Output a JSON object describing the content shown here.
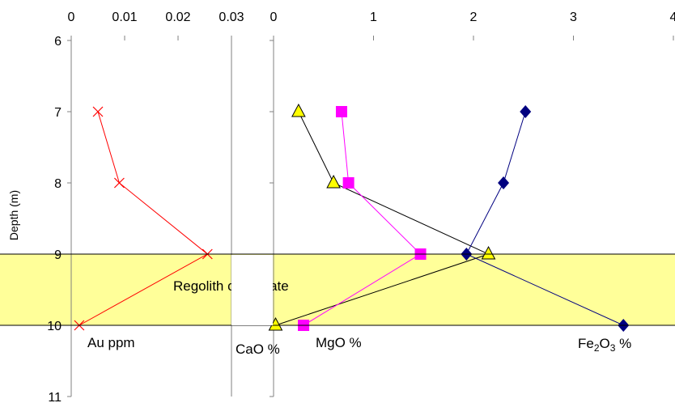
{
  "chart_data": [
    {
      "type": "line",
      "panel": "left",
      "x_axis_position": "top",
      "xlim": [
        0,
        0.03
      ],
      "x_ticks": [
        "0",
        "0.01",
        "0.02",
        "0.03"
      ],
      "ylim": [
        6,
        11
      ],
      "y_inverted": true,
      "y_ticks": [
        "6",
        "7",
        "8",
        "9",
        "10",
        "11"
      ],
      "ylabel": "Depth (m)",
      "series": [
        {
          "name": "Au ppm",
          "color": "#ff0000",
          "marker": "x",
          "points": [
            {
              "x": 0.005,
              "y": 7
            },
            {
              "x": 0.009,
              "y": 8
            },
            {
              "x": 0.0255,
              "y": 9
            },
            {
              "x": 0.0015,
              "y": 10
            }
          ]
        }
      ]
    },
    {
      "type": "line",
      "panel": "right",
      "x_axis_position": "top",
      "xlim": [
        0,
        4
      ],
      "x_ticks": [
        "0",
        "1",
        "2",
        "3",
        "4"
      ],
      "ylim": [
        6,
        11
      ],
      "y_inverted": true,
      "grid": false,
      "series": [
        {
          "name": "CaO %",
          "color": "#000000",
          "marker_fill": "#ffff00",
          "marker": "triangle",
          "points": [
            {
              "x": 0.25,
              "y": 7
            },
            {
              "x": 0.6,
              "y": 8
            },
            {
              "x": 2.15,
              "y": 9
            },
            {
              "x": 0.02,
              "y": 10
            }
          ]
        },
        {
          "name": "MgO %",
          "color": "#ff00ff",
          "marker": "square",
          "points": [
            {
              "x": 0.68,
              "y": 7
            },
            {
              "x": 0.75,
              "y": 8
            },
            {
              "x": 1.47,
              "y": 9
            },
            {
              "x": 0.3,
              "y": 10
            }
          ]
        },
        {
          "name": "Fe2O3 %",
          "color": "#000080",
          "marker": "diamond",
          "points": [
            {
              "x": 2.52,
              "y": 7
            },
            {
              "x": 2.3,
              "y": 8
            },
            {
              "x": 1.93,
              "y": 9
            },
            {
              "x": 3.5,
              "y": 10
            }
          ]
        }
      ]
    }
  ],
  "band": {
    "y_from": 9,
    "y_to": 10,
    "color": "#ffff99"
  },
  "annotations": {
    "regolith": "Regolith carbonate",
    "au": "Au ppm",
    "cao": "CaO %",
    "mgo": "MgO %",
    "fe_main": "Fe",
    "fe_sub": "2",
    "fe_o": "O",
    "fe_o_sub": "3",
    "fe_pct": " %"
  }
}
